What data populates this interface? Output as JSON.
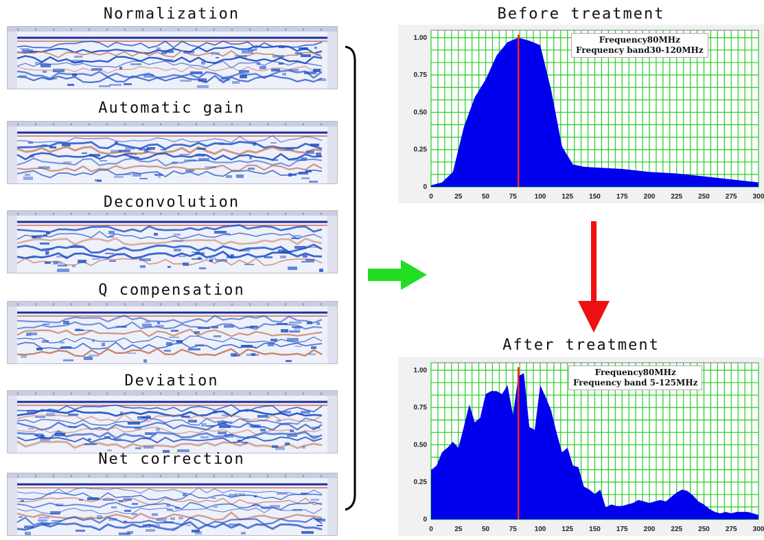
{
  "processing_steps": [
    {
      "title": "Normalization"
    },
    {
      "title": "Automatic gain"
    },
    {
      "title": "Deconvolution"
    },
    {
      "title": "Q compensation"
    },
    {
      "title": "Deviation"
    },
    {
      "title": "Net correction"
    }
  ],
  "colors": {
    "flow_arrow": "#22dd22",
    "down_arrow": "#ee1111",
    "spectrum_fill": "#0000ee",
    "grid": "#22cc22",
    "marker": "#ff2222",
    "radar_trace": "#1d4fc4"
  },
  "before": {
    "title": "Before treatment",
    "legend_line1": "Frequency80MHz",
    "legend_line2": "Frequency band30-120MHz"
  },
  "after": {
    "title": "After treatment",
    "legend_line1": "Frequency80MHz",
    "legend_line2": "Frequency band 5-125MHz"
  },
  "chart_data": [
    {
      "type": "area",
      "x_ticks": [
        0,
        25,
        50,
        75,
        100,
        125,
        150,
        175,
        200,
        225,
        250,
        275,
        300
      ],
      "y_ticks": [
        "0",
        "0.25",
        "0.50",
        "0.75",
        "1.00"
      ],
      "xlim": [
        0,
        300
      ],
      "ylim": [
        0,
        1.05
      ],
      "grid": true,
      "marker_x": 80,
      "x": [
        0,
        10,
        20,
        30,
        40,
        50,
        60,
        70,
        80,
        90,
        100,
        110,
        120,
        130,
        140,
        150,
        175,
        200,
        225,
        250,
        275,
        300
      ],
      "values": [
        0.01,
        0.03,
        0.1,
        0.4,
        0.6,
        0.72,
        0.88,
        0.97,
        1.0,
        0.98,
        0.95,
        0.65,
        0.27,
        0.15,
        0.135,
        0.13,
        0.12,
        0.1,
        0.09,
        0.07,
        0.05,
        0.03
      ]
    },
    {
      "type": "area",
      "x_ticks": [
        0,
        25,
        50,
        75,
        100,
        125,
        150,
        175,
        200,
        225,
        250,
        275,
        300
      ],
      "y_ticks": [
        "0",
        "0.25",
        "0.50",
        "0.75",
        "1.00"
      ],
      "xlim": [
        0,
        300
      ],
      "ylim": [
        0,
        1.05
      ],
      "grid": true,
      "marker_x": 80,
      "x": [
        0,
        5,
        10,
        15,
        20,
        25,
        30,
        35,
        40,
        45,
        50,
        55,
        60,
        65,
        70,
        75,
        80,
        85,
        90,
        95,
        100,
        105,
        110,
        115,
        120,
        125,
        130,
        135,
        140,
        145,
        150,
        155,
        160,
        165,
        170,
        175,
        180,
        185,
        190,
        195,
        200,
        205,
        210,
        215,
        220,
        225,
        230,
        235,
        240,
        245,
        250,
        255,
        260,
        265,
        270,
        275,
        280,
        285,
        290,
        295,
        300
      ],
      "values": [
        0.33,
        0.36,
        0.45,
        0.48,
        0.52,
        0.48,
        0.62,
        0.77,
        0.65,
        0.68,
        0.84,
        0.86,
        0.86,
        0.84,
        0.9,
        0.7,
        0.96,
        0.98,
        0.62,
        0.6,
        0.9,
        0.82,
        0.73,
        0.58,
        0.45,
        0.48,
        0.36,
        0.35,
        0.22,
        0.2,
        0.17,
        0.2,
        0.08,
        0.1,
        0.09,
        0.09,
        0.1,
        0.11,
        0.13,
        0.12,
        0.11,
        0.12,
        0.13,
        0.12,
        0.15,
        0.18,
        0.2,
        0.19,
        0.16,
        0.12,
        0.1,
        0.07,
        0.05,
        0.04,
        0.05,
        0.04,
        0.05,
        0.05,
        0.05,
        0.04,
        0.03
      ]
    }
  ]
}
